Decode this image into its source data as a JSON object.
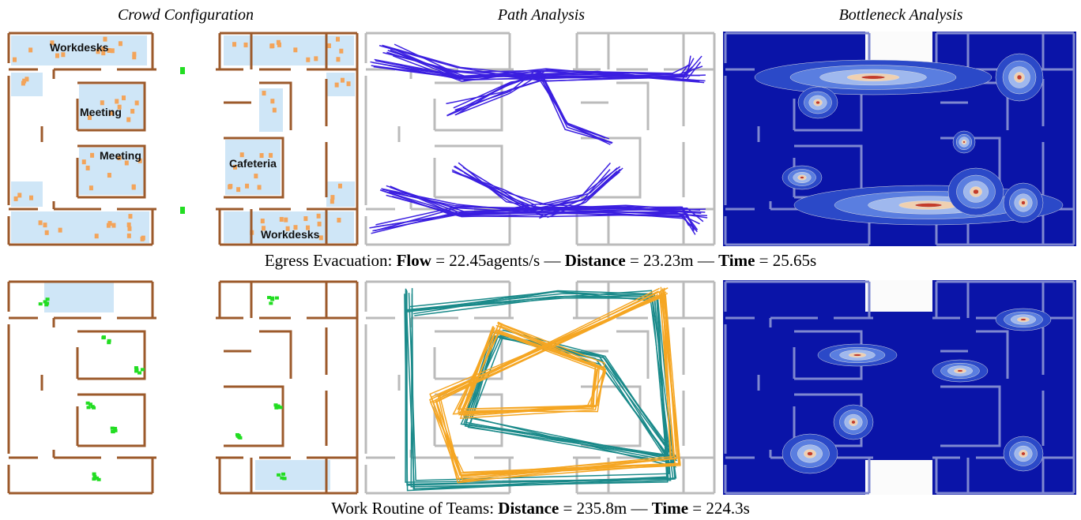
{
  "column_titles": [
    "Crowd Configuration",
    "Path Analysis",
    "Bottleneck Analysis"
  ],
  "room_labels": [
    "Workdesks",
    "Meeting",
    "Meeting",
    "Cafeteria",
    "Workdesks"
  ],
  "captions": [
    {
      "prefix": "Egress Evacuation:",
      "separator": "—",
      "metrics": [
        {
          "name": "Flow",
          "text": "= 22.45agents/s"
        },
        {
          "name": "Distance",
          "text": "= 23.23m"
        },
        {
          "name": "Time",
          "text": "= 25.65s"
        }
      ]
    },
    {
      "prefix": "Work Routine of Teams:",
      "separator": "—",
      "metrics": [
        {
          "name": "Distance",
          "text": "= 235.8m"
        },
        {
          "name": "Time",
          "text": "= 224.3s"
        }
      ]
    }
  ]
}
